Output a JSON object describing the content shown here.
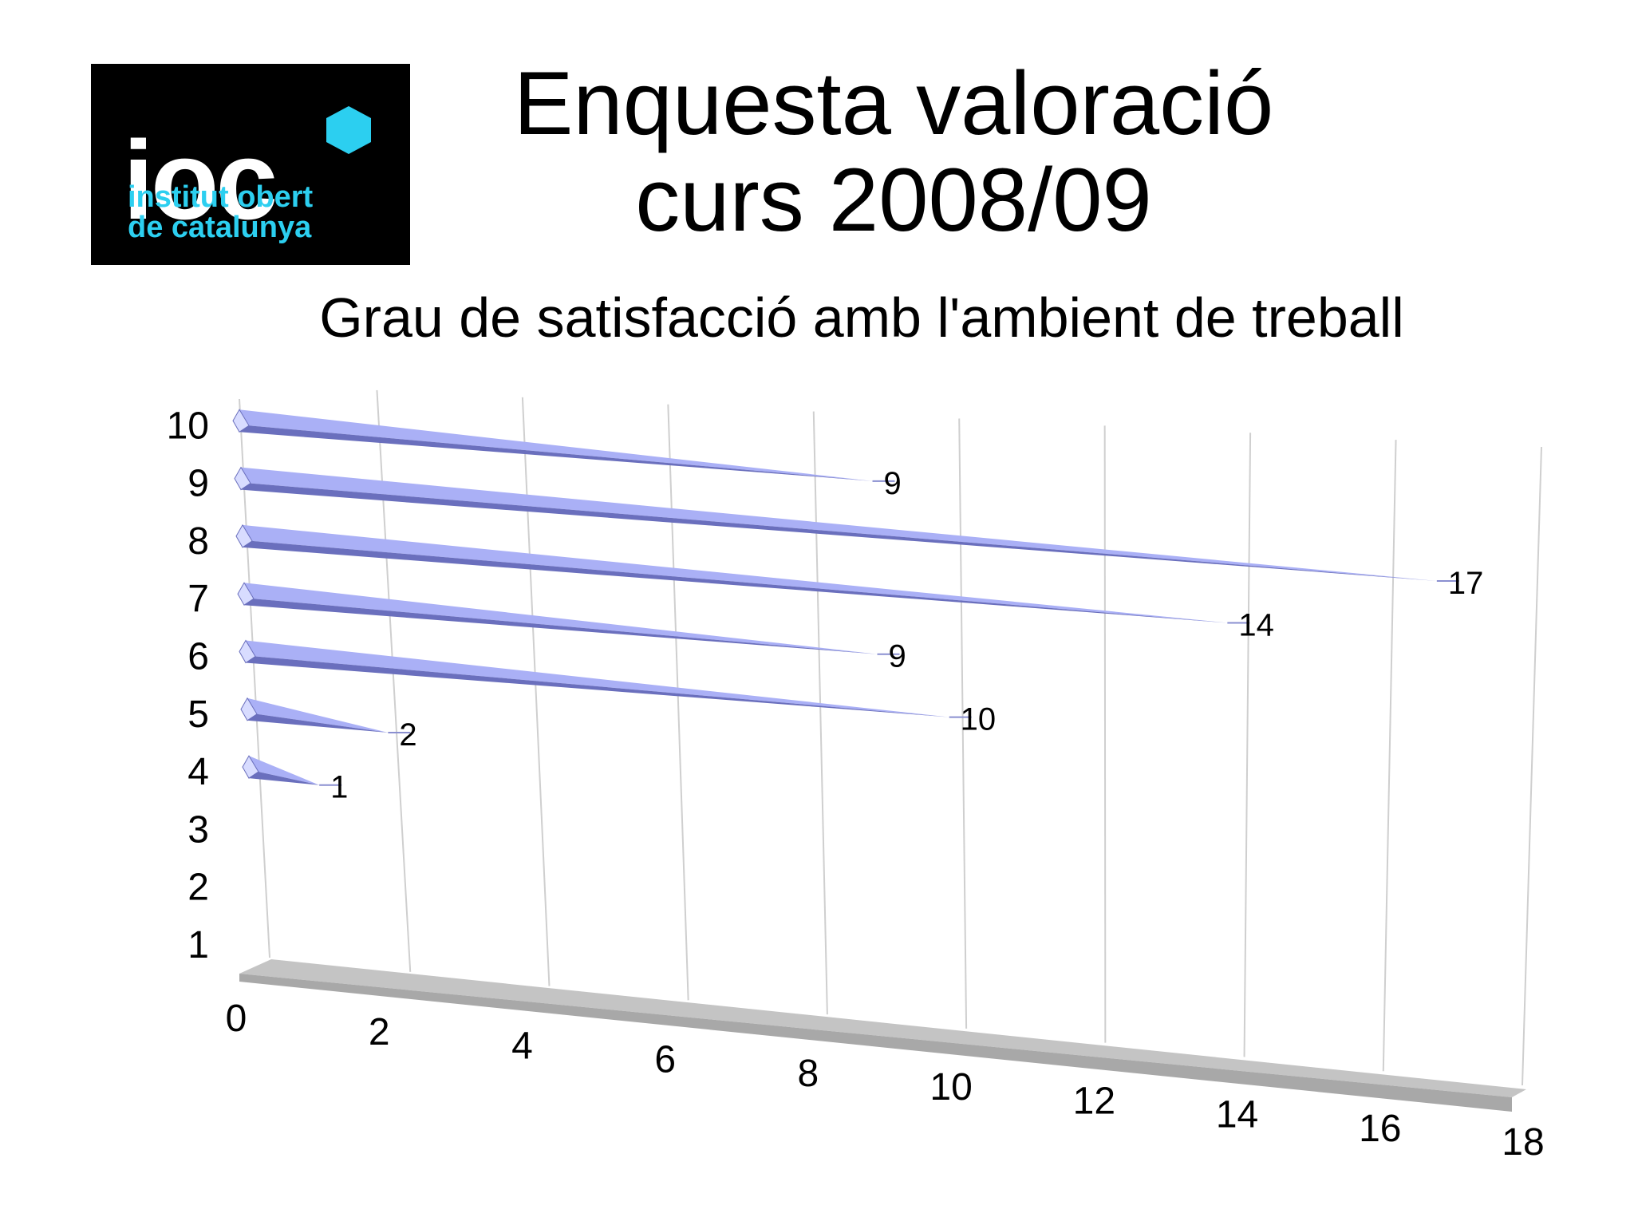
{
  "logo": {
    "word": "ioc",
    "subtitle": "institut obert\nde catalunya",
    "text_color": "#ffffff",
    "accent_color": "#2ccff0",
    "background": "#000000"
  },
  "slide": {
    "title": "Enquesta valoració\ncurs 2008/09"
  },
  "chart_data": {
    "type": "bar",
    "orientation": "horizontal",
    "style": "3d-cone",
    "title": "Grau de satisfacció amb l'ambient de treball",
    "categories": [
      "1",
      "2",
      "3",
      "4",
      "5",
      "6",
      "7",
      "8",
      "9",
      "10"
    ],
    "values": [
      0,
      0,
      0,
      1,
      2,
      10,
      9,
      14,
      17,
      9
    ],
    "xlim": [
      0,
      18
    ],
    "x_ticks": [
      0,
      2,
      4,
      6,
      8,
      10,
      12,
      14,
      16,
      18
    ],
    "grid": true,
    "show_data_labels": true,
    "bar_color": "#aab0f6",
    "bar_shadow_color": "#6a6fbd",
    "floor_color": "#a8a8a8",
    "legend": "none"
  }
}
